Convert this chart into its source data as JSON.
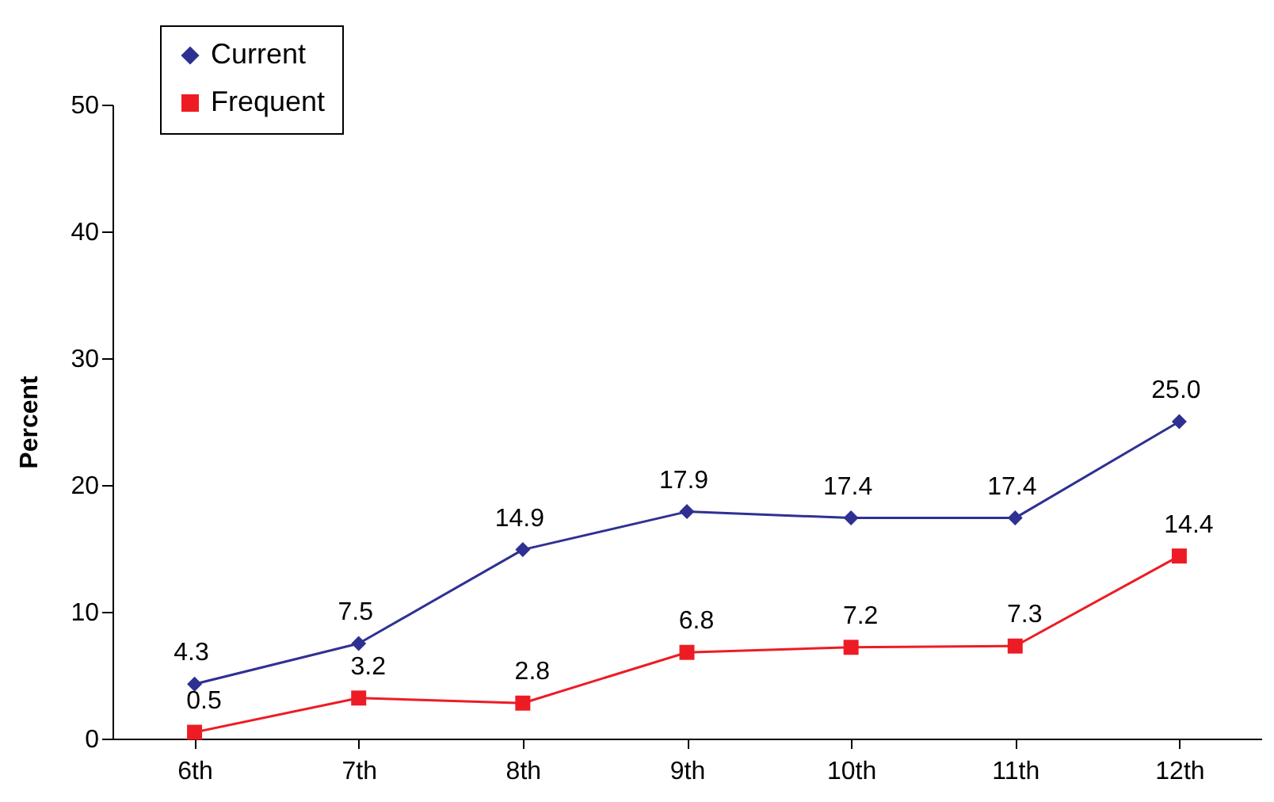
{
  "chart_data": {
    "type": "line",
    "ylabel": "Percent",
    "categories": [
      "6th",
      "7th",
      "8th",
      "9th",
      "10th",
      "11th",
      "12th"
    ],
    "series": [
      {
        "name": "Current",
        "color": "#2e3192",
        "marker": "diamond",
        "values": [
          4.3,
          7.5,
          14.9,
          17.9,
          17.4,
          17.4,
          25.0
        ],
        "value_labels": [
          "4.3",
          "7.5",
          "14.9",
          "17.9",
          "17.4",
          "17.4",
          "25.0"
        ]
      },
      {
        "name": "Frequent",
        "color": "#ed1c24",
        "marker": "square",
        "values": [
          0.5,
          3.2,
          2.8,
          6.8,
          7.2,
          7.3,
          14.4
        ],
        "value_labels": [
          "0.5",
          "3.2",
          "2.8",
          "6.8",
          "7.2",
          "7.3",
          "14.4"
        ]
      }
    ],
    "ylim": [
      0,
      50
    ],
    "yticks": [
      0,
      10,
      20,
      30,
      40,
      50
    ],
    "grid": false,
    "legend": "top left"
  }
}
